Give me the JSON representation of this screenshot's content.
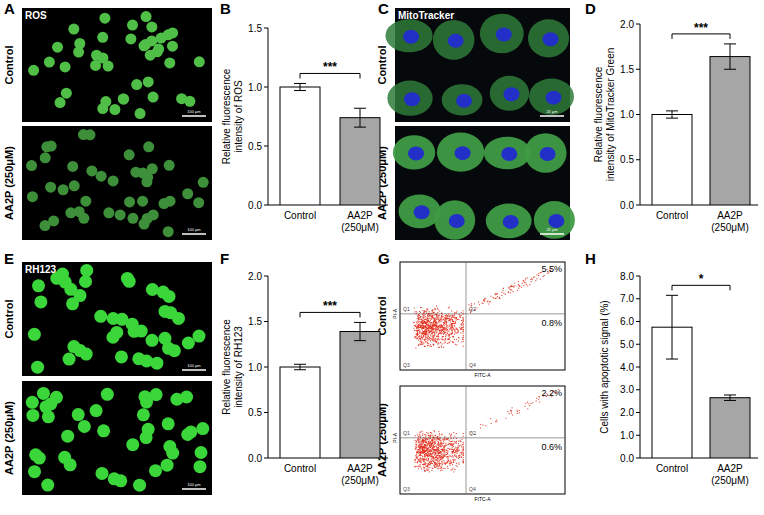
{
  "panel_labels": [
    "A",
    "C",
    "E",
    "G"
  ],
  "image_panels": [
    {
      "tag": "ROS",
      "rows": [
        "Control",
        "AA2P (250μM)"
      ],
      "scale_bar": "100 μm"
    },
    {
      "tag": "MitoTracker",
      "rows": [
        "Control",
        "AA2P (250μM)"
      ],
      "scale_bar": "20 μm"
    },
    {
      "tag": "RH123",
      "rows": [
        "Control",
        "AA2P (250μM)"
      ],
      "scale_bar": "100 μm"
    }
  ],
  "flow_panel": {
    "x_label": "FITC-A",
    "y_label": "PI-A",
    "quadrants": [
      "Q1",
      "Q2",
      "Q3",
      "Q4"
    ],
    "rows": [
      {
        "name": "Control",
        "q2": "5.5%",
        "q4": "0.8%"
      },
      {
        "name": "AA2P (250μM)",
        "q2": "2.2%",
        "q4": "0.6%"
      }
    ]
  },
  "chart_data": [
    {
      "type": "bar",
      "panel": "B",
      "y_label": "Relative fluorescence intensity of ROS",
      "categories": [
        "Control",
        "AA2P (250μM)"
      ],
      "values": [
        1.0,
        0.74
      ],
      "errors": [
        0.03,
        0.08
      ],
      "colors": [
        "#ffffff",
        "#a6a6a6"
      ],
      "ylim": [
        0,
        1.5
      ],
      "yticks": [
        {
          "value": 0,
          "label": "0.0"
        },
        0.5,
        {
          "value": 1,
          "label": "1.0"
        },
        1.5
      ],
      "significance": "***"
    },
    {
      "type": "bar",
      "panel": "D",
      "y_label": "Relative fluorescence intensity of MitoTracker Green",
      "categories": [
        "Control",
        "AA2P (250μM)"
      ],
      "values": [
        1.0,
        1.64
      ],
      "errors": [
        0.04,
        0.14
      ],
      "colors": [
        "#ffffff",
        "#a6a6a6"
      ],
      "ylim": [
        0,
        2
      ],
      "yticks": [
        {
          "value": 0,
          "label": "0.0"
        },
        0.5,
        {
          "value": 1,
          "label": "1.0"
        },
        1.5,
        {
          "value": 2,
          "label": "2.0"
        }
      ],
      "significance": "***"
    },
    {
      "type": "bar",
      "panel": "F",
      "y_label": "Relative fluorescence intensity of RH123",
      "categories": [
        "Control",
        "AA2P (250μM)"
      ],
      "values": [
        1.0,
        1.39
      ],
      "errors": [
        0.03,
        0.1
      ],
      "colors": [
        "#ffffff",
        "#a6a6a6"
      ],
      "ylim": [
        0,
        2
      ],
      "yticks": [
        {
          "value": 0,
          "label": "0.0"
        },
        0.5,
        {
          "value": 1,
          "label": "1.0"
        },
        1.5,
        {
          "value": 2,
          "label": "2.0"
        }
      ],
      "significance": "***"
    },
    {
      "type": "bar",
      "panel": "H",
      "y_label": "Cells with apoptotic signal (%)",
      "categories": [
        "Control",
        "AA2P (250μM)"
      ],
      "values": [
        5.75,
        2.65
      ],
      "errors": [
        1.4,
        0.12
      ],
      "colors": [
        "#ffffff",
        "#a6a6a6"
      ],
      "ylim": [
        0,
        8
      ],
      "yticks": [
        {
          "value": 0,
          "label": "0.0"
        },
        {
          "value": 1,
          "label": "1.0"
        },
        {
          "value": 2,
          "label": "2.0"
        },
        {
          "value": 3,
          "label": "3.0"
        },
        {
          "value": 4,
          "label": "4.0"
        },
        {
          "value": 5,
          "label": "5.0"
        },
        {
          "value": 6,
          "label": "6.0"
        },
        {
          "value": 7,
          "label": "7.0"
        },
        {
          "value": 8,
          "label": "8.0"
        }
      ],
      "significance": "*"
    }
  ]
}
